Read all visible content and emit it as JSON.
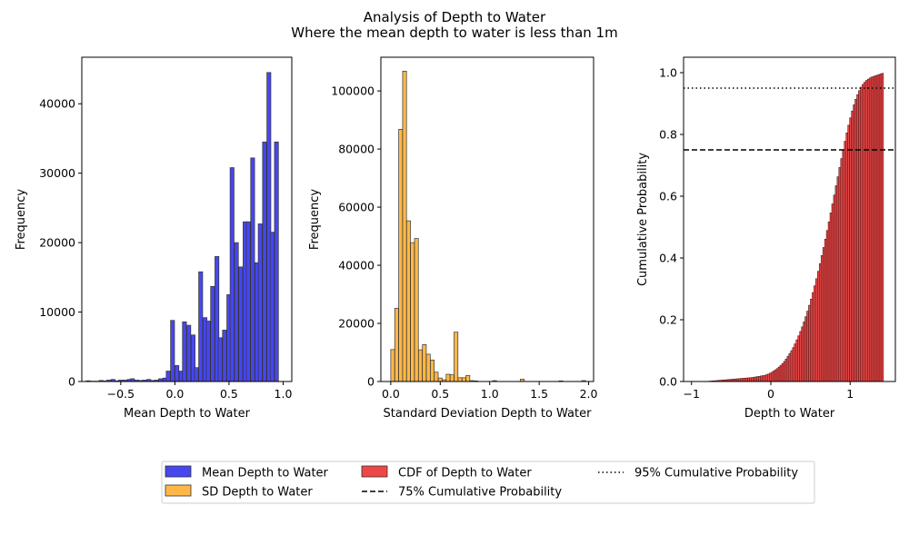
{
  "figure": {
    "title": "Analysis of Depth to Water",
    "subtitle": "Where the mean depth to water is less than 1m"
  },
  "chart_data": [
    {
      "type": "bar",
      "xlabel": "Mean Depth to Water",
      "ylabel": "Frequency",
      "xlim": [
        -0.86,
        1.08
      ],
      "ylim": [
        0,
        46700
      ],
      "xticks": [
        -0.5,
        0.0,
        0.5,
        1.0
      ],
      "xtick_labels": [
        "−0.5",
        "0.0",
        "0.5",
        "1.0"
      ],
      "yticks": [
        0,
        10000,
        20000,
        30000,
        40000
      ],
      "ytick_labels": [
        "0",
        "10000",
        "20000",
        "30000",
        "40000"
      ],
      "fill": "#4747ef",
      "bin_width": 0.0365,
      "bin_starts": [
        -0.82,
        -0.78,
        -0.74,
        -0.7,
        -0.67,
        -0.63,
        -0.59,
        -0.55,
        -0.52,
        -0.48,
        -0.44,
        -0.41,
        -0.37,
        -0.33,
        -0.3,
        -0.26,
        -0.22,
        -0.19,
        -0.15,
        -0.11,
        -0.08,
        -0.04,
        0.0,
        0.04,
        0.07,
        0.11,
        0.15,
        0.18,
        0.22,
        0.26,
        0.29,
        0.33,
        0.37,
        0.4,
        0.44,
        0.48,
        0.51,
        0.55,
        0.59,
        0.63,
        0.66,
        0.7,
        0.74,
        0.77,
        0.81,
        0.85,
        0.88,
        0.92,
        0.96
      ],
      "values": [
        100,
        50,
        50,
        150,
        80,
        200,
        300,
        100,
        200,
        200,
        300,
        400,
        200,
        150,
        200,
        300,
        150,
        200,
        400,
        500,
        1500,
        8800,
        2300,
        1500,
        8600,
        8100,
        6700,
        2000,
        15800,
        9200,
        8700,
        13700,
        18000,
        6300,
        7400,
        12500,
        30800,
        20000,
        16500,
        23000,
        23000,
        32200,
        17100,
        22700,
        34500,
        44500,
        21500,
        34500,
        0
      ]
    },
    {
      "type": "bar",
      "xlabel": "Standard Deviation Depth to Water",
      "ylabel": "Frequency",
      "xlim": [
        -0.1,
        2.05
      ],
      "ylim": [
        0,
        111600
      ],
      "xticks": [
        0.0,
        0.5,
        1.0,
        1.5,
        2.0
      ],
      "xtick_labels": [
        "0.0",
        "0.5",
        "1.0",
        "1.5",
        "2.0"
      ],
      "yticks": [
        0,
        20000,
        40000,
        60000,
        80000,
        100000
      ],
      "ytick_labels": [
        "0",
        "20000",
        "40000",
        "60000",
        "80000",
        "100000"
      ],
      "fill": "#ffb847",
      "bin_width": 0.039,
      "bin_starts": [
        0.0,
        0.04,
        0.08,
        0.12,
        0.16,
        0.2,
        0.24,
        0.28,
        0.32,
        0.36,
        0.4,
        0.44,
        0.48,
        0.52,
        0.56,
        0.6,
        0.64,
        0.68,
        0.72,
        0.76,
        0.8,
        0.84,
        1.03,
        1.31,
        1.7,
        1.93
      ],
      "values": [
        11000,
        25200,
        86800,
        106800,
        55300,
        47800,
        49200,
        10900,
        12700,
        9400,
        7400,
        3200,
        1200,
        600,
        2500,
        2300,
        17000,
        1300,
        1300,
        2100,
        300,
        200,
        300,
        800,
        200,
        300
      ]
    },
    {
      "type": "bar",
      "xlabel": "Depth to Water",
      "ylabel": "Cumulative Probability",
      "xlim": [
        -1.1,
        1.57
      ],
      "ylim": [
        0,
        1.05
      ],
      "xticks": [
        -1,
        0,
        1
      ],
      "xtick_labels": [
        "−1",
        "0",
        "1"
      ],
      "yticks": [
        0.0,
        0.2,
        0.4,
        0.6,
        0.8,
        1.0
      ],
      "ytick_labels": [
        "0.0",
        "0.2",
        "0.4",
        "0.6",
        "0.8",
        "1.0"
      ],
      "fill": "#ef4747",
      "cdf_start": -0.83,
      "cdf_stop": 1.42,
      "cdf_bins": 100,
      "cdf_values": [
        0.0005,
        0.0008,
        0.0012,
        0.0016,
        0.002,
        0.0025,
        0.003,
        0.0035,
        0.004,
        0.0045,
        0.005,
        0.0055,
        0.006,
        0.0065,
        0.007,
        0.0075,
        0.008,
        0.0085,
        0.009,
        0.0095,
        0.01,
        0.0105,
        0.011,
        0.0115,
        0.012,
        0.0125,
        0.013,
        0.014,
        0.015,
        0.016,
        0.017,
        0.018,
        0.019,
        0.02,
        0.022,
        0.024,
        0.027,
        0.03,
        0.034,
        0.038,
        0.042,
        0.047,
        0.052,
        0.058,
        0.065,
        0.073,
        0.082,
        0.091,
        0.1,
        0.11,
        0.122,
        0.135,
        0.148,
        0.162,
        0.177,
        0.193,
        0.21,
        0.228,
        0.247,
        0.267,
        0.288,
        0.31,
        0.333,
        0.357,
        0.382,
        0.408,
        0.434,
        0.461,
        0.489,
        0.517,
        0.546,
        0.575,
        0.604,
        0.634,
        0.663,
        0.693,
        0.722,
        0.75,
        0.778,
        0.805,
        0.83,
        0.854,
        0.876,
        0.896,
        0.914,
        0.929,
        0.942,
        0.953,
        0.962,
        0.969,
        0.975,
        0.979,
        0.983,
        0.986,
        0.988,
        0.99,
        0.992,
        0.994,
        0.996,
        0.998
      ],
      "hlines": [
        {
          "y": 0.75,
          "style": "dashed"
        },
        {
          "y": 0.95,
          "style": "dotted"
        }
      ]
    }
  ],
  "legend": {
    "placement": "bottom-center",
    "entries": [
      {
        "label": "Mean Depth to Water",
        "kind": "patch",
        "color": "#4747ef"
      },
      {
        "label": "SD Depth to Water",
        "kind": "patch",
        "color": "#ffb847"
      },
      {
        "label": "CDF of Depth to Water",
        "kind": "patch",
        "color": "#ef4747"
      },
      {
        "label": "75% Cumulative Probability",
        "kind": "line",
        "style": "dashed"
      },
      {
        "label": "95% Cumulative Probability",
        "kind": "line",
        "style": "dotted"
      }
    ]
  }
}
